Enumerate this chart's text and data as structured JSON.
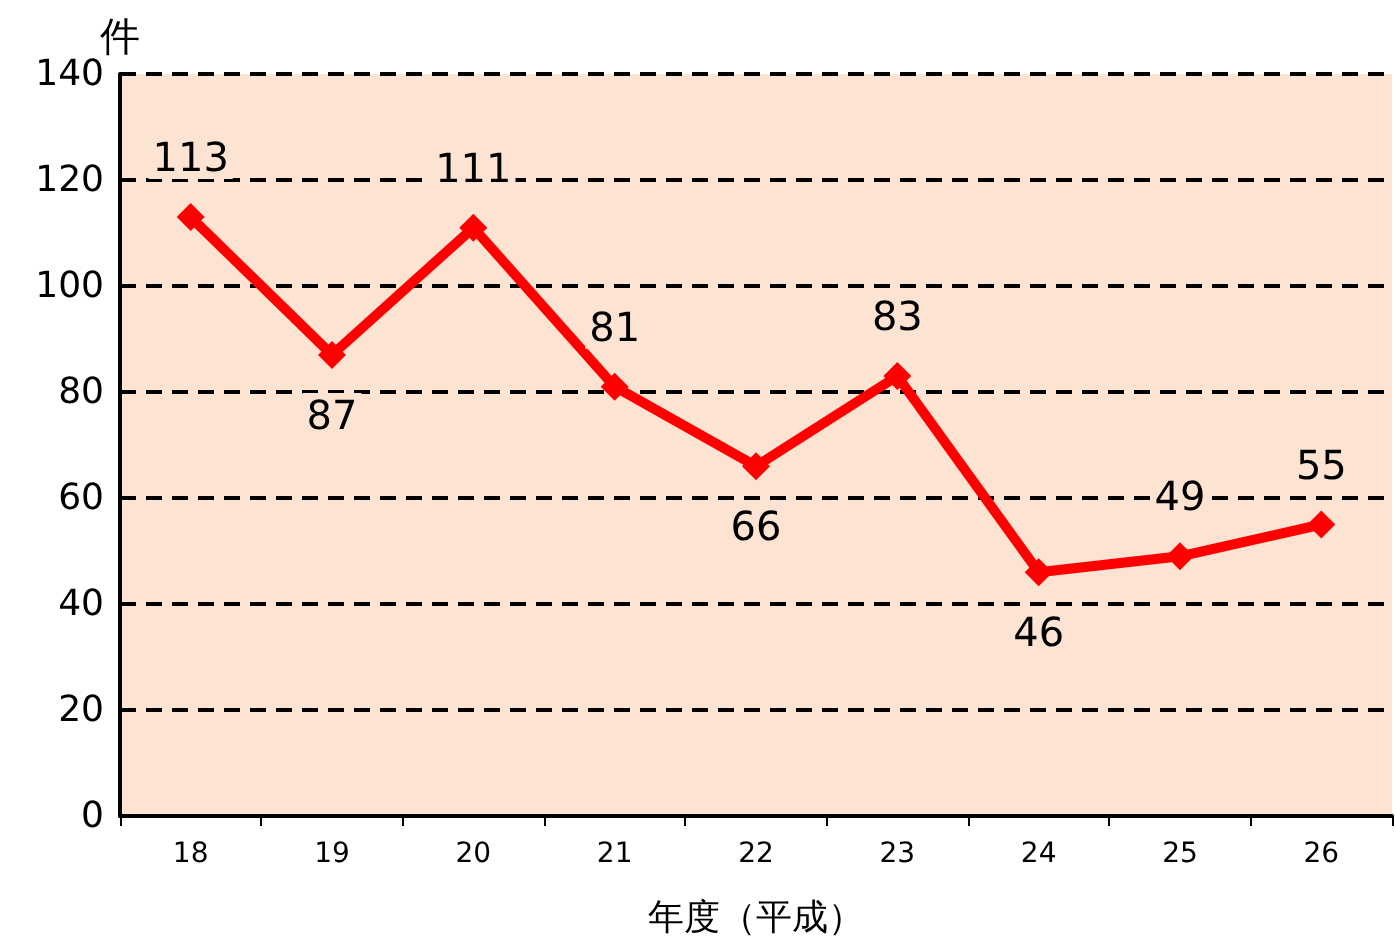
{
  "chart_data": {
    "type": "line",
    "xlabel": "年度（平成）",
    "ylabel": "件",
    "categories": [
      "18",
      "19",
      "20",
      "21",
      "22",
      "23",
      "24",
      "25",
      "26"
    ],
    "series": [
      {
        "color": "#ff0000",
        "values": [
          113,
          87,
          111,
          81,
          66,
          83,
          46,
          49,
          55
        ]
      }
    ],
    "ylim": [
      0,
      140
    ],
    "yticks": [
      0,
      20,
      40,
      60,
      80,
      100,
      120,
      140
    ],
    "grid": "y",
    "line_style": "solid",
    "marker": "diamond",
    "data_labels": true
  }
}
